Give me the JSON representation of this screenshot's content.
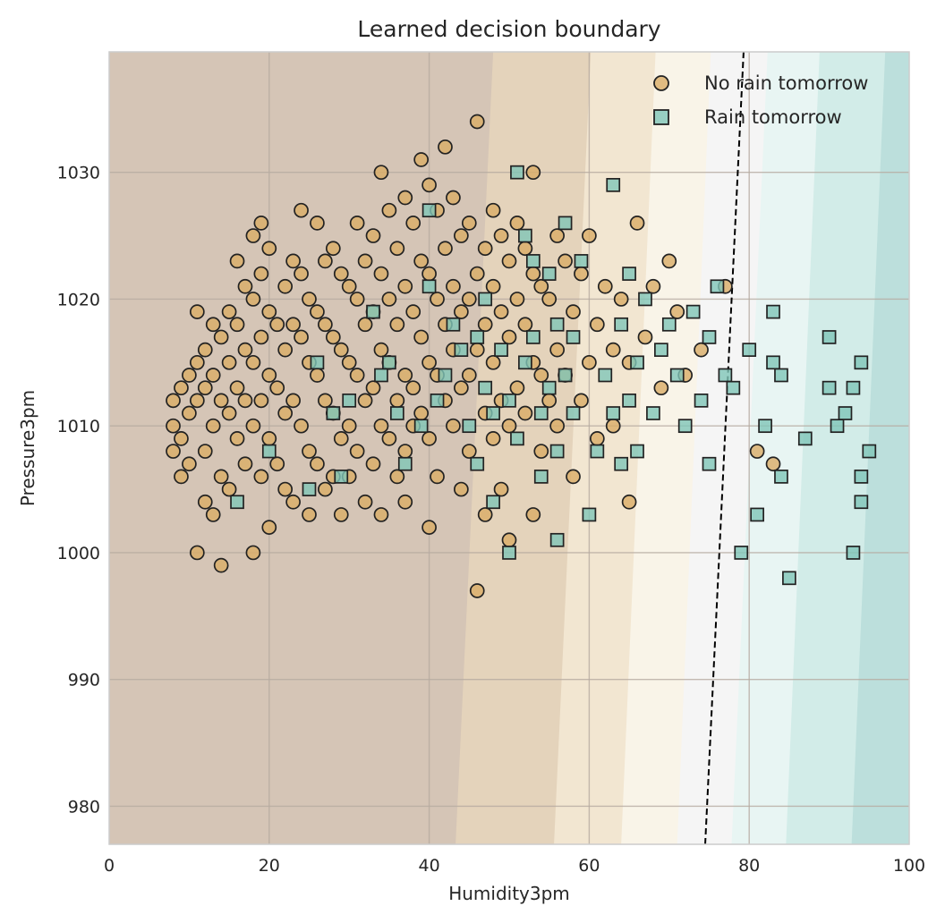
{
  "chart_data": {
    "type": "scatter",
    "title": "Learned decision boundary",
    "xlabel": "Humidity3pm",
    "ylabel": "Pressure3pm",
    "xlim": [
      0,
      100
    ],
    "ylim": [
      977,
      1039.5
    ],
    "xticks": [
      0,
      20,
      40,
      60,
      80,
      100
    ],
    "yticks": [
      980,
      990,
      1000,
      1010,
      1020,
      1030
    ],
    "grid": true,
    "legend_position": "top-right",
    "decision_boundary": {
      "x_at_977": 74.5,
      "x_at_1039.5": 79.3
    },
    "probability_bands": [
      {
        "x_bottom": 43.3,
        "x_top": 48.0,
        "color": "#e4d3bb"
      },
      {
        "x_bottom": 55.6,
        "x_top": 60.2,
        "color": "#f2e6d1"
      },
      {
        "x_bottom": 64.0,
        "x_top": 68.3,
        "color": "#f9f4e8"
      },
      {
        "x_bottom": 71.0,
        "x_top": 75.2,
        "color": "#f5f5f5"
      },
      {
        "x_bottom": 77.8,
        "x_top": 82.3,
        "color": "#e8f5f3"
      },
      {
        "x_bottom": 84.6,
        "x_top": 88.8,
        "color": "#d2ece8"
      },
      {
        "x_bottom": 92.8,
        "x_top": 97.0,
        "color": "#bcdfdc"
      }
    ],
    "colors": {
      "background": "#d5c5b6",
      "no_rain_fill": "#d9ad66",
      "rain_fill": "#7fc5b8",
      "marker_edge": "#222222",
      "boundary_line": "#000000",
      "grid": "#b5aaa0",
      "frame": "#cccccc"
    },
    "series": [
      {
        "name": "No rain tomorrow",
        "marker": "circle",
        "points": [
          [
            8,
            1012
          ],
          [
            8,
            1010
          ],
          [
            8,
            1008
          ],
          [
            9,
            1013
          ],
          [
            9,
            1009
          ],
          [
            9,
            1006
          ],
          [
            10,
            1014
          ],
          [
            10,
            1011
          ],
          [
            10,
            1007
          ],
          [
            11,
            1019
          ],
          [
            11,
            1012
          ],
          [
            11,
            1015
          ],
          [
            11,
            1000
          ],
          [
            12,
            1016
          ],
          [
            12,
            1013
          ],
          [
            12,
            1008
          ],
          [
            12,
            1004
          ],
          [
            13,
            1018
          ],
          [
            13,
            1014
          ],
          [
            13,
            1010
          ],
          [
            13,
            1003
          ],
          [
            14,
            1017
          ],
          [
            14,
            1012
          ],
          [
            14,
            1006
          ],
          [
            14,
            999
          ],
          [
            15,
            1019
          ],
          [
            15,
            1015
          ],
          [
            15,
            1011
          ],
          [
            15,
            1005
          ],
          [
            16,
            1023
          ],
          [
            16,
            1018
          ],
          [
            16,
            1013
          ],
          [
            16,
            1009
          ],
          [
            17,
            1021
          ],
          [
            17,
            1016
          ],
          [
            17,
            1012
          ],
          [
            17,
            1007
          ],
          [
            18,
            1025
          ],
          [
            18,
            1020
          ],
          [
            18,
            1015
          ],
          [
            18,
            1010
          ],
          [
            18,
            1000
          ],
          [
            19,
            1026
          ],
          [
            19,
            1022
          ],
          [
            19,
            1017
          ],
          [
            19,
            1012
          ],
          [
            19,
            1006
          ],
          [
            20,
            1024
          ],
          [
            20,
            1019
          ],
          [
            20,
            1014
          ],
          [
            20,
            1009
          ],
          [
            20,
            1002
          ],
          [
            21,
            1018
          ],
          [
            21,
            1013
          ],
          [
            21,
            1007
          ],
          [
            22,
            1021
          ],
          [
            22,
            1016
          ],
          [
            22,
            1011
          ],
          [
            22,
            1005
          ],
          [
            23,
            1023
          ],
          [
            23,
            1018
          ],
          [
            23,
            1012
          ],
          [
            23,
            1004
          ],
          [
            24,
            1027
          ],
          [
            24,
            1022
          ],
          [
            24,
            1017
          ],
          [
            24,
            1010
          ],
          [
            25,
            1020
          ],
          [
            25,
            1015
          ],
          [
            25,
            1008
          ],
          [
            25,
            1003
          ],
          [
            26,
            1026
          ],
          [
            26,
            1019
          ],
          [
            26,
            1014
          ],
          [
            26,
            1007
          ],
          [
            27,
            1023
          ],
          [
            27,
            1018
          ],
          [
            27,
            1012
          ],
          [
            27,
            1005
          ],
          [
            28,
            1024
          ],
          [
            28,
            1017
          ],
          [
            28,
            1011
          ],
          [
            28,
            1006
          ],
          [
            29,
            1022
          ],
          [
            29,
            1016
          ],
          [
            29,
            1009
          ],
          [
            29,
            1003
          ],
          [
            30,
            1021
          ],
          [
            30,
            1015
          ],
          [
            30,
            1010
          ],
          [
            30,
            1006
          ],
          [
            31,
            1026
          ],
          [
            31,
            1020
          ],
          [
            31,
            1014
          ],
          [
            31,
            1008
          ],
          [
            32,
            1023
          ],
          [
            32,
            1018
          ],
          [
            32,
            1012
          ],
          [
            32,
            1004
          ],
          [
            33,
            1025
          ],
          [
            33,
            1019
          ],
          [
            33,
            1013
          ],
          [
            33,
            1007
          ],
          [
            34,
            1030
          ],
          [
            34,
            1022
          ],
          [
            34,
            1016
          ],
          [
            34,
            1010
          ],
          [
            34,
            1003
          ],
          [
            35,
            1027
          ],
          [
            35,
            1020
          ],
          [
            35,
            1015
          ],
          [
            35,
            1009
          ],
          [
            36,
            1024
          ],
          [
            36,
            1018
          ],
          [
            36,
            1012
          ],
          [
            36,
            1006
          ],
          [
            37,
            1028
          ],
          [
            37,
            1021
          ],
          [
            37,
            1014
          ],
          [
            37,
            1008
          ],
          [
            37,
            1004
          ],
          [
            38,
            1026
          ],
          [
            38,
            1019
          ],
          [
            38,
            1013
          ],
          [
            38,
            1010
          ],
          [
            39,
            1031
          ],
          [
            39,
            1023
          ],
          [
            39,
            1017
          ],
          [
            39,
            1011
          ],
          [
            40,
            1029
          ],
          [
            40,
            1022
          ],
          [
            40,
            1015
          ],
          [
            40,
            1009
          ],
          [
            40,
            1002
          ],
          [
            41,
            1027
          ],
          [
            41,
            1020
          ],
          [
            41,
            1014
          ],
          [
            41,
            1006
          ],
          [
            42,
            1032
          ],
          [
            42,
            1024
          ],
          [
            42,
            1018
          ],
          [
            42,
            1012
          ],
          [
            43,
            1028
          ],
          [
            43,
            1021
          ],
          [
            43,
            1016
          ],
          [
            43,
            1010
          ],
          [
            44,
            1025
          ],
          [
            44,
            1019
          ],
          [
            44,
            1013
          ],
          [
            44,
            1005
          ],
          [
            45,
            1026
          ],
          [
            45,
            1020
          ],
          [
            45,
            1014
          ],
          [
            45,
            1008
          ],
          [
            46,
            1034
          ],
          [
            46,
            1022
          ],
          [
            46,
            1016
          ],
          [
            46,
            997
          ],
          [
            47,
            1024
          ],
          [
            47,
            1018
          ],
          [
            47,
            1011
          ],
          [
            47,
            1003
          ],
          [
            48,
            1027
          ],
          [
            48,
            1021
          ],
          [
            48,
            1015
          ],
          [
            48,
            1009
          ],
          [
            49,
            1025
          ],
          [
            49,
            1019
          ],
          [
            49,
            1012
          ],
          [
            49,
            1005
          ],
          [
            50,
            1023
          ],
          [
            50,
            1017
          ],
          [
            50,
            1010
          ],
          [
            50,
            1001
          ],
          [
            51,
            1026
          ],
          [
            51,
            1020
          ],
          [
            51,
            1013
          ],
          [
            52,
            1024
          ],
          [
            52,
            1018
          ],
          [
            52,
            1011
          ],
          [
            53,
            1030
          ],
          [
            53,
            1022
          ],
          [
            53,
            1015
          ],
          [
            53,
            1003
          ],
          [
            54,
            1021
          ],
          [
            54,
            1014
          ],
          [
            54,
            1008
          ],
          [
            55,
            1020
          ],
          [
            55,
            1012
          ],
          [
            56,
            1025
          ],
          [
            56,
            1016
          ],
          [
            56,
            1010
          ],
          [
            57,
            1023
          ],
          [
            57,
            1014
          ],
          [
            58,
            1019
          ],
          [
            58,
            1006
          ],
          [
            59,
            1022
          ],
          [
            59,
            1012
          ],
          [
            60,
            1025
          ],
          [
            60,
            1015
          ],
          [
            61,
            1018
          ],
          [
            61,
            1009
          ],
          [
            62,
            1021
          ],
          [
            63,
            1016
          ],
          [
            63,
            1010
          ],
          [
            64,
            1020
          ],
          [
            65,
            1015
          ],
          [
            65,
            1004
          ],
          [
            66,
            1026
          ],
          [
            67,
            1017
          ],
          [
            68,
            1021
          ],
          [
            69,
            1013
          ],
          [
            70,
            1023
          ],
          [
            71,
            1019
          ],
          [
            72,
            1014
          ],
          [
            74,
            1016
          ],
          [
            77,
            1021
          ],
          [
            81,
            1008
          ],
          [
            83,
            1007
          ]
        ]
      },
      {
        "name": "Rain tomorrow",
        "marker": "square",
        "points": [
          [
            16,
            1004
          ],
          [
            20,
            1008
          ],
          [
            25,
            1005
          ],
          [
            26,
            1015
          ],
          [
            28,
            1011
          ],
          [
            29,
            1006
          ],
          [
            30,
            1012
          ],
          [
            33,
            1019
          ],
          [
            34,
            1014
          ],
          [
            35,
            1015
          ],
          [
            36,
            1011
          ],
          [
            37,
            1007
          ],
          [
            39,
            1010
          ],
          [
            40,
            1027
          ],
          [
            40,
            1021
          ],
          [
            41,
            1012
          ],
          [
            42,
            1014
          ],
          [
            43,
            1018
          ],
          [
            44,
            1016
          ],
          [
            45,
            1010
          ],
          [
            46,
            1017
          ],
          [
            46,
            1007
          ],
          [
            47,
            1020
          ],
          [
            47,
            1013
          ],
          [
            48,
            1011
          ],
          [
            48,
            1004
          ],
          [
            49,
            1016
          ],
          [
            50,
            1012
          ],
          [
            50,
            1000
          ],
          [
            51,
            1030
          ],
          [
            51,
            1009
          ],
          [
            52,
            1025
          ],
          [
            52,
            1015
          ],
          [
            53,
            1023
          ],
          [
            53,
            1017
          ],
          [
            54,
            1011
          ],
          [
            54,
            1006
          ],
          [
            55,
            1022
          ],
          [
            55,
            1013
          ],
          [
            56,
            1018
          ],
          [
            56,
            1008
          ],
          [
            56,
            1001
          ],
          [
            57,
            1026
          ],
          [
            57,
            1014
          ],
          [
            58,
            1017
          ],
          [
            58,
            1011
          ],
          [
            59,
            1023
          ],
          [
            60,
            1003
          ],
          [
            61,
            1008
          ],
          [
            62,
            1014
          ],
          [
            63,
            1029
          ],
          [
            63,
            1011
          ],
          [
            64,
            1018
          ],
          [
            64,
            1007
          ],
          [
            65,
            1022
          ],
          [
            65,
            1012
          ],
          [
            66,
            1015
          ],
          [
            66,
            1008
          ],
          [
            67,
            1020
          ],
          [
            68,
            1011
          ],
          [
            69,
            1016
          ],
          [
            70,
            1018
          ],
          [
            71,
            1014
          ],
          [
            72,
            1010
          ],
          [
            73,
            1019
          ],
          [
            74,
            1012
          ],
          [
            75,
            1017
          ],
          [
            75,
            1007
          ],
          [
            76,
            1021
          ],
          [
            77,
            1014
          ],
          [
            78,
            1013
          ],
          [
            79,
            1000
          ],
          [
            80,
            1016
          ],
          [
            81,
            1003
          ],
          [
            82,
            1010
          ],
          [
            83,
            1019
          ],
          [
            83,
            1015
          ],
          [
            84,
            1014
          ],
          [
            84,
            1006
          ],
          [
            85,
            998
          ],
          [
            87,
            1009
          ],
          [
            90,
            1017
          ],
          [
            90,
            1013
          ],
          [
            91,
            1010
          ],
          [
            92,
            1011
          ],
          [
            93,
            1013
          ],
          [
            93,
            1000
          ],
          [
            94,
            1015
          ],
          [
            94,
            1006
          ],
          [
            94,
            1004
          ],
          [
            95,
            1008
          ]
        ]
      }
    ]
  }
}
